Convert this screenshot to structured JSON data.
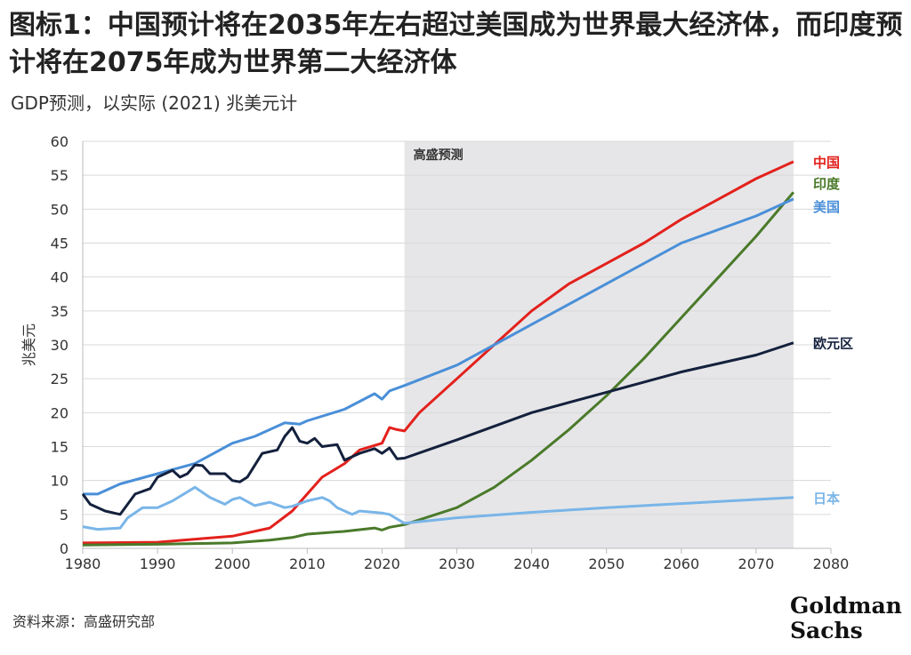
{
  "title": "图标1：中国预计将在2035年左右超过美国成为世界最大经济体，而印度预计将在2075年成为世界第二大经济体",
  "subtitle": "GDP预测，以实际 (2021) 兆美元计",
  "source": "资料来源：高盛研究部",
  "logo": [
    "Goldman",
    "Sachs"
  ],
  "chart_data": {
    "type": "line",
    "title": "图标1：中国预计将在2035年左右超过美国成为世界最大经济体，而印度预计将在2075年成为世界第二大经济体",
    "subtitle": "GDP预测，以实际 (2021) 兆美元计",
    "xlabel": "",
    "ylabel": "兆美元",
    "xlim": [
      1980,
      2080
    ],
    "ylim": [
      0,
      60
    ],
    "xticks": [
      1980,
      1990,
      2000,
      2010,
      2020,
      2030,
      2040,
      2050,
      2060,
      2070,
      2080
    ],
    "yticks": [
      0,
      5,
      10,
      15,
      20,
      25,
      30,
      35,
      40,
      45,
      50,
      55,
      60
    ],
    "grid": "horizontal",
    "legend": "line-end labels on right",
    "forecast_region": {
      "label": "高盛预测",
      "from": 2023,
      "to": 2075,
      "color": "#e6e6e8"
    },
    "series": [
      {
        "name": "中国",
        "color": "#e3211c",
        "x": [
          1980,
          1990,
          2000,
          2005,
          2008,
          2010,
          2012,
          2015,
          2017,
          2020,
          2021,
          2022,
          2023,
          2025,
          2030,
          2035,
          2040,
          2045,
          2050,
          2055,
          2060,
          2065,
          2070,
          2075
        ],
        "y": [
          0.8,
          0.9,
          1.8,
          3,
          5.5,
          8,
          10.5,
          12.5,
          14.5,
          15.5,
          17.8,
          17.5,
          17.3,
          20,
          25,
          30,
          35,
          39,
          42,
          45,
          48.5,
          51.5,
          54.5,
          57
        ]
      },
      {
        "name": "印度",
        "color": "#4a7a2a",
        "x": [
          1980,
          1990,
          2000,
          2005,
          2008,
          2010,
          2015,
          2019,
          2020,
          2021,
          2023,
          2030,
          2035,
          2040,
          2045,
          2050,
          2055,
          2060,
          2065,
          2070,
          2075
        ],
        "y": [
          0.5,
          0.6,
          0.8,
          1.2,
          1.6,
          2.1,
          2.5,
          3,
          2.7,
          3.1,
          3.5,
          6,
          9,
          13,
          17.5,
          22.5,
          28,
          34,
          40,
          46,
          52.5
        ]
      },
      {
        "name": "美国",
        "color": "#4a8fd8",
        "x": [
          1980,
          1982,
          1985,
          1990,
          1995,
          2000,
          2003,
          2007,
          2009,
          2010,
          2015,
          2019,
          2020,
          2021,
          2023,
          2030,
          2040,
          2050,
          2060,
          2070,
          2075
        ],
        "y": [
          8,
          8,
          9.5,
          11,
          12.5,
          15.5,
          16.5,
          18.5,
          18.3,
          18.8,
          20.5,
          22.8,
          22,
          23.2,
          24,
          27,
          33,
          39,
          45,
          49,
          51.5
        ]
      },
      {
        "name": "欧元区",
        "color": "#14213d",
        "x": [
          1980,
          1981,
          1983,
          1985,
          1987,
          1989,
          1990,
          1992,
          1993,
          1994,
          1995,
          1996,
          1997,
          1999,
          2000,
          2001,
          2002,
          2004,
          2006,
          2007,
          2008,
          2009,
          2010,
          2011,
          2012,
          2014,
          2015,
          2017,
          2019,
          2020,
          2021,
          2022,
          2023,
          2030,
          2040,
          2050,
          2060,
          2070,
          2075
        ],
        "y": [
          8,
          6.5,
          5.5,
          5,
          8,
          8.8,
          10.5,
          11.5,
          10.5,
          11,
          12.3,
          12.2,
          11,
          11,
          10,
          9.8,
          10.5,
          14,
          14.5,
          16.5,
          17.8,
          15.8,
          15.5,
          16.2,
          15,
          15.3,
          13,
          14,
          14.7,
          14,
          14.8,
          13.2,
          13.3,
          16,
          20,
          23,
          26,
          28.5,
          30.3
        ]
      },
      {
        "name": "日本",
        "color": "#79b5e8",
        "x": [
          1980,
          1982,
          1985,
          1986,
          1988,
          1990,
          1992,
          1995,
          1997,
          1999,
          2000,
          2001,
          2003,
          2005,
          2007,
          2008,
          2010,
          2012,
          2013,
          2014,
          2016,
          2017,
          2020,
          2021,
          2023,
          2030,
          2040,
          2050,
          2060,
          2070,
          2075
        ],
        "y": [
          3.2,
          2.8,
          3,
          4.5,
          6,
          6,
          7,
          9,
          7.5,
          6.5,
          7.2,
          7.5,
          6.3,
          6.8,
          6,
          6.2,
          7,
          7.5,
          7,
          6,
          5,
          5.5,
          5.2,
          5,
          3.7,
          4.5,
          5.3,
          6,
          6.6,
          7.2,
          7.5
        ]
      }
    ]
  }
}
